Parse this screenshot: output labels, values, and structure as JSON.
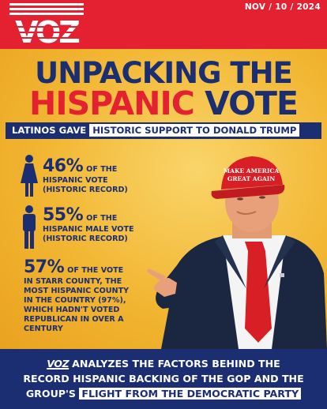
{
  "brand": {
    "name": "VOZ"
  },
  "date": "NOV / 10 / 2024",
  "title": {
    "line1": "UNPACKING THE",
    "line2_red": "HISPANIC",
    "line2_navy": "VOTE"
  },
  "subtitle": {
    "prefix": "LATINOS GAVE",
    "highlight": "HISTORIC SUPPORT TO DONALD TRUMP"
  },
  "stats": [
    {
      "value": "46%",
      "inline": "OF THE",
      "text": [
        "HISPANIC VOTE",
        "(HISTORIC RECORD)"
      ],
      "icon": "woman-icon"
    },
    {
      "value": "55%",
      "inline": "OF THE",
      "text": [
        "HISPANIC MALE VOTE",
        "(HISTORIC RECORD)"
      ],
      "icon": "man-icon"
    },
    {
      "value": "57%",
      "inline": "OF THE VOTE",
      "text": [
        "IN STARR COUNTY, THE",
        "MOST HISPANIC COUNTY",
        "IN THE COUNTRY (97%),",
        "WHICH HADN'T VOTED",
        "REPUBLICAN IN OVER A",
        "CENTURY"
      ]
    }
  ],
  "hat_text": [
    "MAKE AMERICA",
    "GREAT AGAIN"
  ],
  "footer": {
    "logo": "VOZ",
    "line1": "ANALYZES THE FACTORS BEHIND THE",
    "line2": "RECORD HISPANIC BACKING OF THE GOP AND THE",
    "line3_pre": "GROUP'S",
    "line3_highlight": "FLIGHT FROM THE DEMOCRATIC PARTY"
  },
  "colors": {
    "red": "#e42131",
    "navy": "#1c2e72",
    "gold": "#f2b632"
  }
}
